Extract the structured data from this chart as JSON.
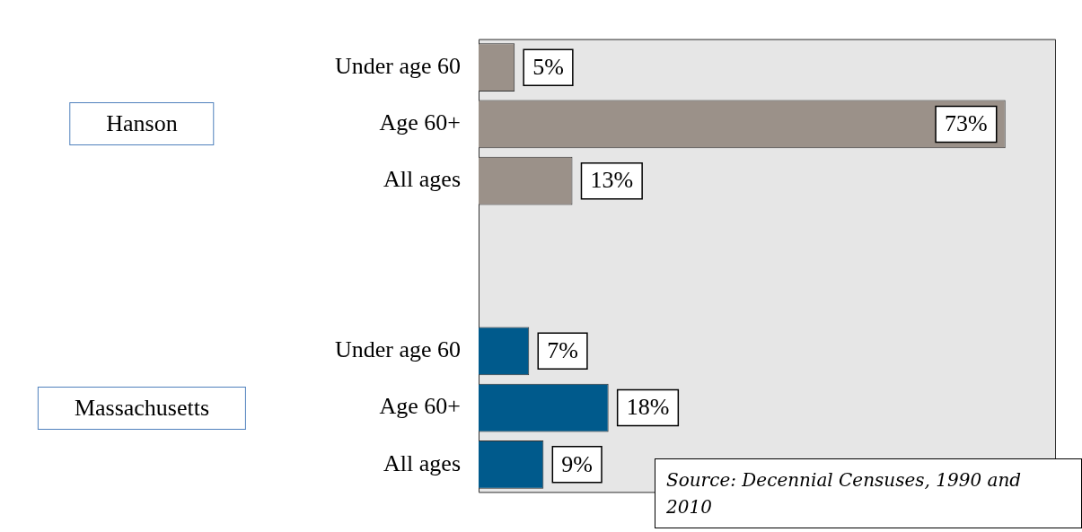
{
  "chart_data": {
    "type": "bar",
    "orientation": "horizontal",
    "stacked": true,
    "categories": [
      "Under age 60",
      "Age 60+",
      "All ages",
      null,
      null,
      "Under age 60",
      "Age 60+",
      "All ages"
    ],
    "series": [
      {
        "color": "#9b9189",
        "values": [
          5,
          73,
          13,
          null,
          null,
          null,
          null,
          null
        ],
        "value_labels": [
          "5%",
          "73%",
          "13%",
          null,
          null,
          null,
          null,
          null
        ]
      },
      {
        "color": "#005a8c",
        "values": [
          null,
          null,
          null,
          null,
          null,
          7,
          18,
          9
        ],
        "value_labels": [
          null,
          null,
          null,
          null,
          null,
          "7%",
          "18%",
          "9%"
        ]
      }
    ],
    "grid": false,
    "legend": false,
    "annotations": [
      "Hanson",
      "Massachusetts",
      "Source: Decennial Censuses, 1990 and 2010"
    ]
  }
}
